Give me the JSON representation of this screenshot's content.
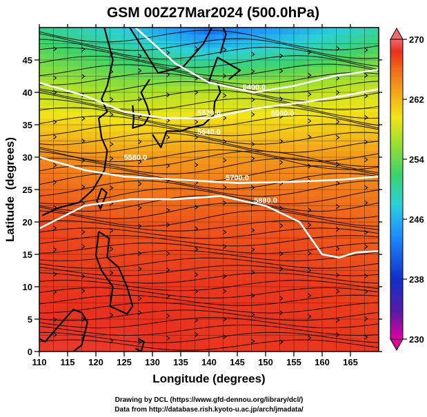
{
  "chart_data": {
    "type": "heatmap",
    "title": "GSM 00Z27Mar2024 (500.0hPa)",
    "xlabel": "Longitude (degrees)",
    "ylabel": "Latitude  (degrees)",
    "xlim": [
      110,
      170
    ],
    "ylim": [
      0,
      50
    ],
    "x_ticks": [
      "110",
      "115",
      "120",
      "125",
      "130",
      "135",
      "140",
      "145",
      "150",
      "155",
      "160",
      "165"
    ],
    "y_ticks": [
      "0",
      "5",
      "10",
      "15",
      "20",
      "25",
      "30",
      "35",
      "40",
      "45"
    ],
    "grid": true,
    "colorbar": {
      "min": 230,
      "max": 270,
      "ticks": [
        "230",
        "238",
        "246",
        "254",
        "262",
        "270"
      ],
      "colors": [
        "#e000a0",
        "#5a1aa8",
        "#1030c8",
        "#1e90ff",
        "#2cd0d8",
        "#3ed26a",
        "#a2e02c",
        "#f2e418",
        "#f4a81a",
        "#f06a1a",
        "#e8301e",
        "#ee6a6a"
      ]
    },
    "temperature_field": {
      "lat": [
        0,
        10,
        20,
        30,
        40,
        50
      ],
      "lon": [
        110,
        125,
        140,
        155,
        170
      ],
      "values": [
        [
          267,
          267,
          266,
          266,
          266
        ],
        [
          266,
          266,
          266,
          266,
          265
        ],
        [
          265,
          264,
          264,
          264,
          263
        ],
        [
          261,
          260,
          260,
          260,
          260
        ],
        [
          253,
          252,
          253,
          253,
          254
        ],
        [
          247,
          244,
          239,
          242,
          246
        ]
      ]
    },
    "height_contours": [
      {
        "label": "5400.0",
        "points": [
          [
            127,
            50
          ],
          [
            134,
            44.5
          ],
          [
            140,
            41.5
          ],
          [
            148,
            40
          ],
          [
            155,
            41
          ],
          [
            162,
            42.5
          ],
          [
            170,
            43.5
          ]
        ]
      },
      {
        "label": "5520.0",
        "points": [
          [
            110,
            41.5
          ],
          [
            118,
            39.5
          ],
          [
            125,
            37
          ],
          [
            132,
            36
          ],
          [
            140,
            36
          ],
          [
            148,
            37.5
          ],
          [
            157,
            38.5
          ],
          [
            164,
            39.5
          ],
          [
            170,
            40.5
          ]
        ]
      },
      {
        "label": "5700.0",
        "points": [
          [
            110,
            30
          ],
          [
            118,
            28
          ],
          [
            125,
            27
          ],
          [
            135,
            26.5
          ],
          [
            145,
            26
          ],
          [
            155,
            26.2
          ],
          [
            163,
            26.5
          ],
          [
            170,
            27
          ]
        ]
      },
      {
        "label": "5880.0",
        "points": [
          [
            110,
            19
          ],
          [
            118,
            22.5
          ],
          [
            126,
            23.5
          ],
          [
            134,
            23.5
          ],
          [
            142,
            24
          ],
          [
            150,
            22.5
          ],
          [
            156,
            20
          ],
          [
            160,
            15
          ],
          [
            163,
            14.5
          ],
          [
            166,
            15.3
          ],
          [
            170,
            15.5
          ]
        ]
      }
    ],
    "extra_labels": [
      "5500.0",
      "5640.0",
      "5580.0"
    ],
    "geopotential_height_range": [
      5400,
      5880
    ]
  },
  "footer": {
    "line1": "Drawing by DCL (https://www.gfd-dennou.org/library/dcl/)",
    "line2": "Data from http://database.rish.kyoto-u.ac.jp/arch/jmadata/"
  }
}
